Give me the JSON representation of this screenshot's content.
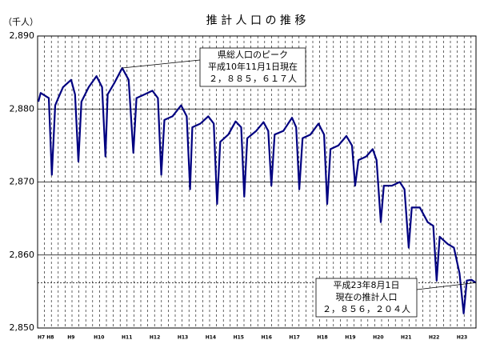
{
  "chart_data": {
    "type": "line",
    "title": "推 計 人 口 の 推 移",
    "y_axis_label": "（千人）",
    "color": "#000080",
    "x": [
      7.83,
      7.91,
      8.2,
      8.31,
      8.43,
      8.54,
      8.71,
      9.0,
      9.14,
      9.26,
      9.37,
      9.63,
      9.91,
      10.11,
      10.23,
      10.31,
      10.54,
      10.83,
      11.06,
      11.23,
      11.34,
      11.63,
      11.91,
      12.11,
      12.23,
      12.34,
      12.63,
      12.94,
      13.14,
      13.26,
      13.34,
      13.63,
      13.91,
      14.11,
      14.23,
      14.34,
      14.63,
      14.89,
      15.09,
      15.2,
      15.31,
      15.63,
      15.89,
      16.06,
      16.17,
      16.29,
      16.6,
      16.91,
      17.06,
      17.17,
      17.29,
      17.57,
      17.86,
      18.06,
      18.17,
      18.29,
      18.57,
      18.86,
      19.06,
      19.17,
      19.29,
      19.57,
      19.8,
      19.94,
      20.09,
      20.2,
      20.49,
      20.77,
      20.94,
      21.09,
      21.2,
      21.49,
      21.77,
      21.97,
      22.09,
      22.2,
      22.49,
      22.71,
      22.91,
      23.06,
      23.17,
      23.34,
      23.49
    ],
    "values": [
      2881,
      2882.2,
      2881.5,
      2871,
      2880.5,
      2881.5,
      2883,
      2884,
      2882,
      2872.8,
      2881,
      2883,
      2884.5,
      2883,
      2873.5,
      2882,
      2883.5,
      2885.617,
      2884,
      2874,
      2881.5,
      2882,
      2882.5,
      2881.5,
      2871,
      2878.5,
      2879,
      2880.5,
      2879,
      2869,
      2877.5,
      2878,
      2879,
      2878,
      2867,
      2875.5,
      2876.5,
      2878.3,
      2877.5,
      2868,
      2876,
      2877,
      2878.2,
      2877,
      2869.5,
      2876.5,
      2877,
      2878.8,
      2877.5,
      2869,
      2876,
      2876.5,
      2878,
      2876.5,
      2867,
      2874.5,
      2875,
      2876.3,
      2875,
      2869.5,
      2873,
      2873.5,
      2874.5,
      2873,
      2864.5,
      2869.5,
      2869.5,
      2870,
      2869,
      2861,
      2866.5,
      2866.5,
      2864.5,
      2864,
      2856.5,
      2862.5,
      2861.5,
      2861,
      2857.5,
      2852,
      2856.5,
      2856.6,
      2856.204
    ],
    "xlim": [
      7.8,
      23.5
    ],
    "xticks": [
      {
        "value": 7.8,
        "label": "H7 H8"
      },
      {
        "value": 9,
        "label": "H9"
      },
      {
        "value": 10,
        "label": "H10"
      },
      {
        "value": 11,
        "label": "H11"
      },
      {
        "value": 12,
        "label": "H12"
      },
      {
        "value": 13,
        "label": "H13"
      },
      {
        "value": 14,
        "label": "H14"
      },
      {
        "value": 15,
        "label": "H15"
      },
      {
        "value": 16,
        "label": "H16"
      },
      {
        "value": 17,
        "label": "H17"
      },
      {
        "value": 18,
        "label": "H18"
      },
      {
        "value": 19,
        "label": "H19"
      },
      {
        "value": 20,
        "label": "H20"
      },
      {
        "value": 21,
        "label": "H21"
      },
      {
        "value": 22,
        "label": "H22"
      },
      {
        "value": 23,
        "label": "H23"
      }
    ],
    "ylim": [
      2850,
      2890
    ],
    "yticks": [
      {
        "value": 2850,
        "label": "2,850"
      },
      {
        "value": 2860,
        "label": "2,860"
      },
      {
        "value": 2870,
        "label": "2,870"
      },
      {
        "value": 2880,
        "label": "2,880"
      },
      {
        "value": 2890,
        "label": "2,890"
      }
    ],
    "reference_line": 2856.204,
    "annotations": [
      {
        "lines": [
          "県総人口のピーク",
          "平成10年11月1日現在",
          "２，８８５，６１７人"
        ],
        "x": 10.83,
        "y": 2885.617
      },
      {
        "lines": [
          "平成23年8月1日",
          "現在の推計人口",
          "２，８５６，２０４人"
        ],
        "x": 23.49,
        "y": 2856.204
      }
    ]
  }
}
